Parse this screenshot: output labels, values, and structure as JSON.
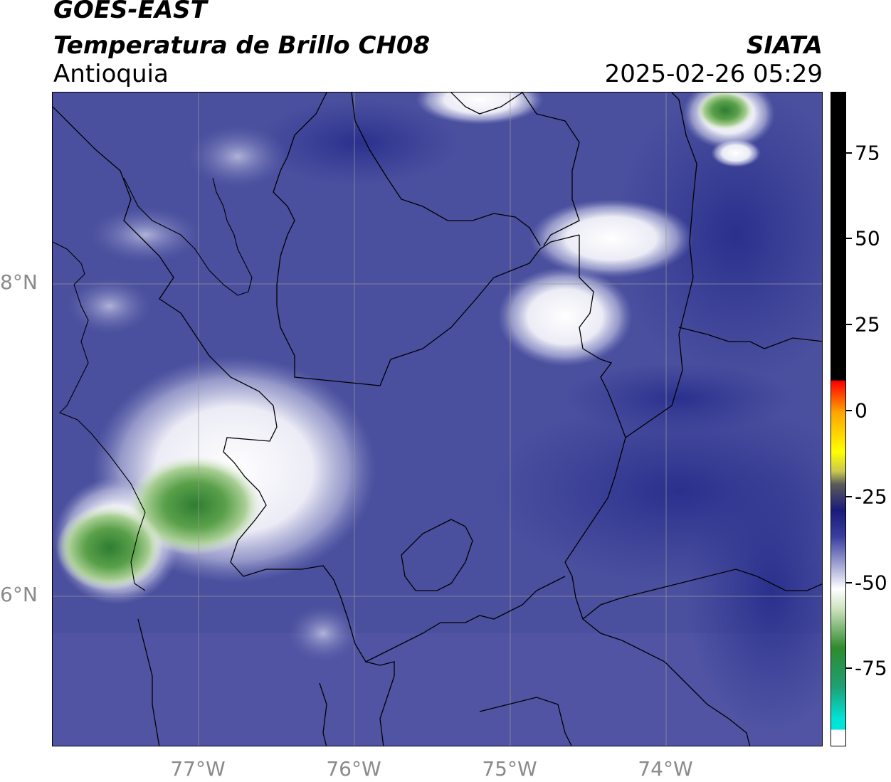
{
  "header": {
    "satellite": "GOES-EAST",
    "product": "Temperatura de Brillo CH08",
    "region": "Antioquia",
    "institution": "SIATA",
    "datetime": "2025-02-26 05:29"
  },
  "axes": {
    "x_ticks": [
      "77°W",
      "76°W",
      "75°W",
      "74°W"
    ],
    "y_ticks": [
      "8°N",
      "6°N"
    ]
  },
  "colorbar": {
    "ticks": [
      "75",
      "50",
      "25",
      "0",
      "-25",
      "-50",
      "-75"
    ],
    "colors": {
      "top": "#000000",
      "warm": [
        "#ff0000",
        "#ffa500",
        "#ffff00"
      ],
      "mid": "#1a1a7a",
      "cold_white": "#ffffff",
      "green": "#2e8b2e",
      "cyan": "#00e5d8"
    }
  },
  "map_colors": {
    "background": "#4a4f9e",
    "dark_patch": "#2f3591",
    "cloud_white": "#ffffff",
    "cloud_green": "#4a9a3e",
    "border": "#000000",
    "grid": "#9a9a9a"
  }
}
